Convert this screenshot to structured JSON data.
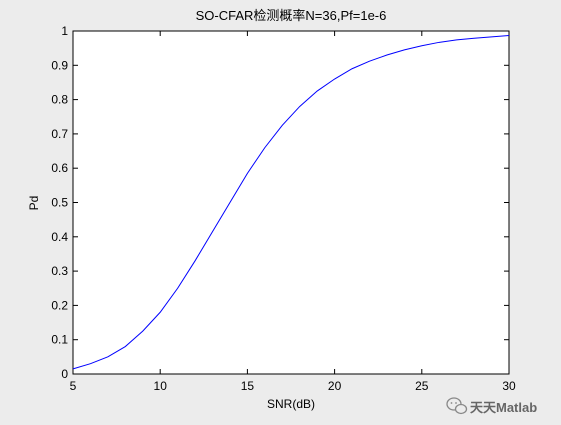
{
  "chart_data": {
    "type": "line",
    "title": "SO-CFAR检测概率N=36,Pf=1e-6",
    "xlabel": "SNR(dB)",
    "ylabel": "Pd",
    "xlim": [
      5,
      30
    ],
    "ylim": [
      0,
      1
    ],
    "xticks": [
      5,
      10,
      15,
      20,
      25,
      30
    ],
    "yticks": [
      0,
      0.1,
      0.2,
      0.3,
      0.4,
      0.5,
      0.6,
      0.7,
      0.8,
      0.9,
      1
    ],
    "ytick_labels": [
      "0",
      "0.1",
      "0.2",
      "0.3",
      "0.4",
      "0.5",
      "0.6",
      "0.7",
      "0.8",
      "0.9",
      "1"
    ],
    "grid": false,
    "line_color": "#0000ff",
    "series": [
      {
        "x": [
          5,
          6,
          7,
          8,
          9,
          10,
          11,
          12,
          13,
          14,
          15,
          16,
          17,
          18,
          19,
          20,
          21,
          22,
          23,
          24,
          25,
          26,
          27,
          28,
          29,
          30
        ],
        "values": [
          0.015,
          0.03,
          0.05,
          0.08,
          0.125,
          0.18,
          0.25,
          0.33,
          0.415,
          0.5,
          0.585,
          0.66,
          0.725,
          0.78,
          0.825,
          0.86,
          0.89,
          0.912,
          0.93,
          0.945,
          0.957,
          0.967,
          0.974,
          0.979,
          0.983,
          0.987
        ]
      }
    ]
  },
  "watermark": {
    "text": "天天Matlab",
    "icon": "wechat-icon"
  }
}
